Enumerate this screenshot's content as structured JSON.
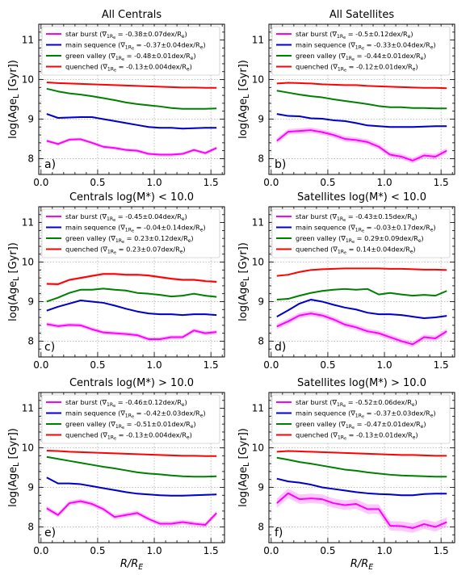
{
  "chart_data": [
    {
      "panel": "a)",
      "type": "line",
      "title": "All Centrals",
      "xlabel": "",
      "ylabel": "log(Age_L [Gyr])",
      "xlim": [
        -0.02,
        1.62
      ],
      "ylim": [
        7.6,
        11.4
      ],
      "x": [
        0.05,
        0.15,
        0.25,
        0.35,
        0.45,
        0.55,
        0.65,
        0.75,
        0.85,
        0.95,
        1.05,
        1.15,
        1.25,
        1.35,
        1.45,
        1.55
      ],
      "series": [
        {
          "name": "star burst (∇1Re = -0.38±0.07dex/Re)",
          "color": "#ff00ff",
          "values": [
            8.45,
            8.37,
            8.48,
            8.49,
            8.4,
            8.3,
            8.27,
            8.22,
            8.2,
            8.12,
            8.1,
            8.1,
            8.12,
            8.22,
            8.14,
            8.27
          ],
          "band": 0.04
        },
        {
          "name": "main sequence (∇1Re = -0.37±0.04dex/Re)",
          "color": "#0000cc",
          "values": [
            9.13,
            9.03,
            9.04,
            9.05,
            9.05,
            9.0,
            8.95,
            8.9,
            8.85,
            8.8,
            8.78,
            8.78,
            8.76,
            8.77,
            8.78,
            8.78
          ],
          "band": 0.02
        },
        {
          "name": "green valley (∇1Re = -0.48±0.01dex/Re)",
          "color": "#008000",
          "values": [
            9.77,
            9.7,
            9.65,
            9.62,
            9.58,
            9.53,
            9.48,
            9.42,
            9.38,
            9.35,
            9.32,
            9.28,
            9.26,
            9.26,
            9.26,
            9.27
          ],
          "band": 0.01
        },
        {
          "name": "quenched (∇1Re = -0.13±0.004dex/Re)",
          "color": "#ff0000",
          "values": [
            9.93,
            9.91,
            9.9,
            9.89,
            9.88,
            9.87,
            9.86,
            9.85,
            9.84,
            9.83,
            9.82,
            9.81,
            9.8,
            9.8,
            9.79,
            9.79
          ],
          "band": 0.005
        }
      ]
    },
    {
      "panel": "b)",
      "type": "line",
      "title": "All Satellites",
      "xlabel": "",
      "ylabel": "log(Age_L [Gyr])",
      "xlim": [
        -0.02,
        1.62
      ],
      "ylim": [
        7.6,
        11.4
      ],
      "x": [
        0.05,
        0.15,
        0.25,
        0.35,
        0.45,
        0.55,
        0.65,
        0.75,
        0.85,
        0.95,
        1.05,
        1.15,
        1.25,
        1.35,
        1.45,
        1.55
      ],
      "series": [
        {
          "name": "star burst (∇1Re = -0.5±0.12dex/Re)",
          "color": "#ff00ff",
          "values": [
            8.45,
            8.68,
            8.7,
            8.72,
            8.67,
            8.6,
            8.5,
            8.47,
            8.42,
            8.3,
            8.1,
            8.05,
            7.95,
            8.08,
            8.05,
            8.2
          ],
          "band": 0.07
        },
        {
          "name": "main sequence (∇1Re = -0.33±0.04dex/Re)",
          "color": "#0000cc",
          "values": [
            9.13,
            9.08,
            9.07,
            9.02,
            9.01,
            8.97,
            8.95,
            8.9,
            8.84,
            8.82,
            8.8,
            8.8,
            8.8,
            8.81,
            8.82,
            8.82
          ],
          "band": 0.02
        },
        {
          "name": "green valley (∇1Re = -0.44±0.01dex/Re)",
          "color": "#008000",
          "values": [
            9.72,
            9.67,
            9.62,
            9.58,
            9.55,
            9.5,
            9.46,
            9.42,
            9.38,
            9.33,
            9.3,
            9.3,
            9.28,
            9.28,
            9.27,
            9.27
          ],
          "band": 0.01
        },
        {
          "name": "quenched (∇1Re = -0.12±0.01dex/Re)",
          "color": "#ff0000",
          "values": [
            9.9,
            9.92,
            9.91,
            9.9,
            9.88,
            9.87,
            9.86,
            9.86,
            9.84,
            9.83,
            9.82,
            9.81,
            9.8,
            9.79,
            9.79,
            9.78
          ],
          "band": 0.01
        }
      ]
    },
    {
      "panel": "c)",
      "type": "line",
      "title": "Centrals log(M*) < 10.0",
      "xlabel": "",
      "ylabel": "log(Age_L [Gyr])",
      "xlim": [
        -0.02,
        1.62
      ],
      "ylim": [
        7.6,
        11.4
      ],
      "x": [
        0.05,
        0.15,
        0.25,
        0.35,
        0.45,
        0.55,
        0.65,
        0.75,
        0.85,
        0.95,
        1.05,
        1.15,
        1.25,
        1.35,
        1.45,
        1.55
      ],
      "series": [
        {
          "name": "star burst (∇1Re = -0.45±0.04dex/Re)",
          "color": "#ff00ff",
          "values": [
            8.43,
            8.38,
            8.41,
            8.4,
            8.3,
            8.22,
            8.2,
            8.18,
            8.15,
            8.05,
            8.05,
            8.1,
            8.1,
            8.27,
            8.2,
            8.23
          ],
          "band": 0.05
        },
        {
          "name": "main sequence (∇1Re = -0.04±0.14dex/Re)",
          "color": "#0000cc",
          "values": [
            8.77,
            8.87,
            8.95,
            9.03,
            9.0,
            8.97,
            8.9,
            8.82,
            8.75,
            8.7,
            8.68,
            8.68,
            8.66,
            8.68,
            8.68,
            8.66
          ],
          "band": 0.02
        },
        {
          "name": "green valley (∇1Re = 0.23±0.12dex/Re)",
          "color": "#008000",
          "values": [
            9.0,
            9.1,
            9.22,
            9.3,
            9.3,
            9.33,
            9.3,
            9.28,
            9.22,
            9.2,
            9.17,
            9.13,
            9.15,
            9.2,
            9.15,
            9.12
          ],
          "band": 0.02
        },
        {
          "name": "quenched (∇1Re = 0.23±0.07dex/Re)",
          "color": "#ff0000",
          "values": [
            9.45,
            9.44,
            9.55,
            9.6,
            9.65,
            9.7,
            9.7,
            9.68,
            9.68,
            9.66,
            9.62,
            9.58,
            9.55,
            9.55,
            9.52,
            9.5
          ],
          "band": 0.03
        }
      ]
    },
    {
      "panel": "d)",
      "type": "line",
      "title": "Satellites log(M*) < 10.0",
      "xlabel": "",
      "ylabel": "log(Age_L [Gyr])",
      "xlim": [
        -0.02,
        1.62
      ],
      "ylim": [
        7.6,
        11.4
      ],
      "x": [
        0.05,
        0.15,
        0.25,
        0.35,
        0.45,
        0.55,
        0.65,
        0.75,
        0.85,
        0.95,
        1.05,
        1.15,
        1.25,
        1.35,
        1.45,
        1.55
      ],
      "series": [
        {
          "name": "star burst (∇1Re = -0.43±0.15dex/Re)",
          "color": "#ff00ff",
          "values": [
            8.37,
            8.5,
            8.65,
            8.7,
            8.65,
            8.55,
            8.42,
            8.35,
            8.25,
            8.2,
            8.1,
            8.0,
            7.92,
            8.1,
            8.07,
            8.25
          ],
          "band": 0.07
        },
        {
          "name": "main sequence (∇1Re = -0.03±0.17dex/Re)",
          "color": "#0000cc",
          "values": [
            8.62,
            8.78,
            8.95,
            9.05,
            9.0,
            8.92,
            8.85,
            8.8,
            8.72,
            8.68,
            8.68,
            8.66,
            8.62,
            8.58,
            8.6,
            8.64
          ],
          "band": 0.02
        },
        {
          "name": "green valley (∇1Re = 0.29±0.09dex/Re)",
          "color": "#008000",
          "values": [
            9.05,
            9.07,
            9.15,
            9.22,
            9.27,
            9.3,
            9.32,
            9.3,
            9.32,
            9.18,
            9.22,
            9.18,
            9.15,
            9.17,
            9.15,
            9.27
          ],
          "band": 0.02
        },
        {
          "name": "quenched (∇1Re = 0.14±0.04dex/Re)",
          "color": "#ff0000",
          "values": [
            9.65,
            9.68,
            9.75,
            9.8,
            9.82,
            9.83,
            9.84,
            9.84,
            9.84,
            9.84,
            9.83,
            9.83,
            9.82,
            9.81,
            9.81,
            9.8
          ],
          "band": 0.01
        }
      ]
    },
    {
      "panel": "e)",
      "type": "line",
      "title": "Centrals log(M*) > 10.0",
      "xlabel": "R/R_E",
      "ylabel": "log(Age_L [Gyr])",
      "xlim": [
        -0.02,
        1.62
      ],
      "ylim": [
        7.6,
        11.4
      ],
      "x": [
        0.05,
        0.15,
        0.25,
        0.35,
        0.45,
        0.55,
        0.65,
        0.75,
        0.85,
        0.95,
        1.05,
        1.15,
        1.25,
        1.35,
        1.45,
        1.55
      ],
      "series": [
        {
          "name": "star burst (∇1Re = -0.46±0.12dex/Re)",
          "color": "#ff00ff",
          "values": [
            8.47,
            8.3,
            8.6,
            8.65,
            8.58,
            8.45,
            8.25,
            8.3,
            8.35,
            8.2,
            8.08,
            8.08,
            8.12,
            8.08,
            8.05,
            8.35
          ],
          "band": 0.06
        },
        {
          "name": "main sequence (∇1Re = -0.42±0.03dex/Re)",
          "color": "#0000cc",
          "values": [
            9.25,
            9.1,
            9.1,
            9.08,
            9.03,
            8.98,
            8.93,
            8.88,
            8.84,
            8.82,
            8.8,
            8.79,
            8.79,
            8.8,
            8.81,
            8.82
          ],
          "band": 0.02
        },
        {
          "name": "green valley (∇1Re = -0.51±0.01dex/Re)",
          "color": "#008000",
          "values": [
            9.77,
            9.72,
            9.67,
            9.62,
            9.57,
            9.52,
            9.48,
            9.43,
            9.38,
            9.35,
            9.33,
            9.3,
            9.28,
            9.27,
            9.27,
            9.28
          ],
          "band": 0.01
        },
        {
          "name": "quenched (∇1Re = -0.13±0.004dex/Re)",
          "color": "#ff0000",
          "values": [
            9.93,
            9.92,
            9.9,
            9.89,
            9.88,
            9.87,
            9.86,
            9.85,
            9.84,
            9.83,
            9.82,
            9.81,
            9.8,
            9.8,
            9.79,
            9.79
          ],
          "band": 0.005
        }
      ]
    },
    {
      "panel": "f)",
      "type": "line",
      "title": "Satellites log(M*) > 10.0",
      "xlabel": "R/R_E",
      "ylabel": "log(Age_L [Gyr])",
      "xlim": [
        -0.02,
        1.62
      ],
      "ylim": [
        7.6,
        11.4
      ],
      "x": [
        0.05,
        0.15,
        0.25,
        0.35,
        0.45,
        0.55,
        0.65,
        0.75,
        0.85,
        0.95,
        1.05,
        1.15,
        1.25,
        1.35,
        1.45,
        1.55
      ],
      "series": [
        {
          "name": "star burst (∇1Re = -0.52±0.06dex/Re)",
          "color": "#ff00ff",
          "values": [
            8.6,
            8.85,
            8.7,
            8.72,
            8.7,
            8.6,
            8.55,
            8.58,
            8.45,
            8.45,
            8.03,
            8.02,
            7.97,
            8.07,
            8.0,
            8.12
          ],
          "band": 0.12
        },
        {
          "name": "main sequence (∇1Re = -0.37±0.03dex/Re)",
          "color": "#0000cc",
          "values": [
            9.22,
            9.15,
            9.12,
            9.07,
            9.0,
            8.96,
            8.92,
            8.88,
            8.85,
            8.83,
            8.82,
            8.8,
            8.8,
            8.83,
            8.84,
            8.84
          ],
          "band": 0.02
        },
        {
          "name": "green valley (∇1Re = -0.47±0.01dex/Re)",
          "color": "#008000",
          "values": [
            9.75,
            9.7,
            9.64,
            9.6,
            9.55,
            9.5,
            9.45,
            9.42,
            9.38,
            9.35,
            9.32,
            9.3,
            9.29,
            9.28,
            9.27,
            9.27
          ],
          "band": 0.01
        },
        {
          "name": "quenched (∇1Re = -0.13±0.01dex/Re)",
          "color": "#ff0000",
          "values": [
            9.9,
            9.92,
            9.91,
            9.9,
            9.89,
            9.88,
            9.87,
            9.86,
            9.85,
            9.84,
            9.83,
            9.82,
            9.82,
            9.81,
            9.8,
            9.8
          ],
          "band": 0.01
        }
      ]
    }
  ],
  "axes": {
    "xticks": [
      0.0,
      0.5,
      1.0,
      1.5
    ],
    "xtick_labels": [
      "0.0",
      "0.5",
      "1.0",
      "1.5"
    ],
    "yticks": [
      8,
      9,
      10,
      11
    ],
    "ytick_labels": [
      "8",
      "9",
      "10",
      "11"
    ],
    "grid": true,
    "legend_position": "top"
  }
}
